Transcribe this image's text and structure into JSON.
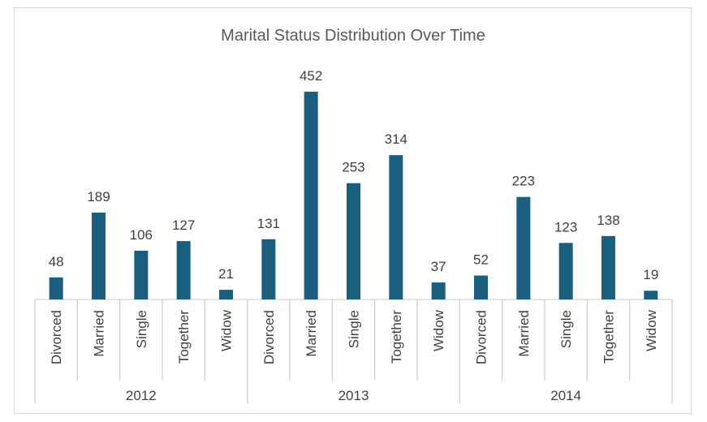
{
  "chart_data": {
    "type": "bar",
    "title": "Marital Status Distribution Over Time",
    "xlabel": "",
    "ylabel": "",
    "grid": false,
    "legend": "none",
    "bar_color": "#1a5e80",
    "groups": [
      {
        "name": "2012",
        "categories": [
          "Divorced",
          "Married",
          "Single",
          "Together",
          "Widow"
        ],
        "values": [
          48,
          189,
          106,
          127,
          21
        ]
      },
      {
        "name": "2013",
        "categories": [
          "Divorced",
          "Married",
          "Single",
          "Together",
          "Widow"
        ],
        "values": [
          131,
          452,
          253,
          314,
          37
        ]
      },
      {
        "name": "2014",
        "categories": [
          "Divorced",
          "Married",
          "Single",
          "Together",
          "Widow"
        ],
        "values": [
          52,
          223,
          123,
          138,
          19
        ]
      }
    ],
    "ylim": [
      0,
      452
    ]
  }
}
